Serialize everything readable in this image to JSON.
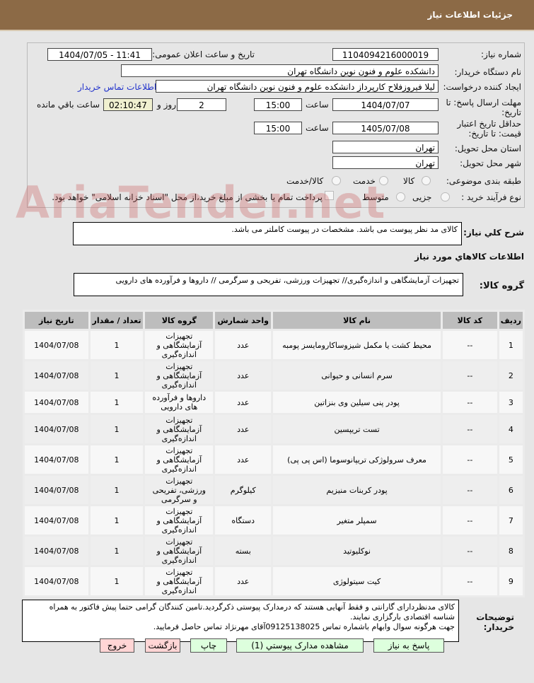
{
  "header": {
    "title": "جزئیات اطلاعات نیاز"
  },
  "form": {
    "need_number_label": "شماره نیاز:",
    "need_number": "1104094216000019",
    "announce_label": "تاریخ و ساعت اعلان عمومی:",
    "announce_value": "1404/07/05 - 11:41",
    "buyer_org_label": "نام دستگاه خریدار:",
    "buyer_org": "دانشکده علوم و فنون نوین دانشگاه تهران",
    "creator_label": "ایجاد کننده درخواست:",
    "creator": "لیلا فیروزفلاح کارپرداز دانشکده علوم و فنون نوین دانشگاه تهران",
    "contact_link": "اطلاعات تماس خریدار",
    "deadline_label": "مهلت ارسال پاسخ: تا تاریخ:",
    "deadline_date": "1404/07/07",
    "time_label": "ساعت",
    "deadline_time": "15:00",
    "days": "2",
    "days_label": "روز و",
    "remaining": "02:10:47",
    "remaining_label": "ساعت باقي مانده",
    "validity_label": "حداقل تاریخ اعتبار قیمت: تا تاریخ:",
    "validity_date": "1405/07/08",
    "validity_time": "15:00",
    "province_label": "استان محل تحویل:",
    "province": "تهران",
    "city_label": "شهر محل تحویل:",
    "city": "تهران",
    "category_label": "طبقه بندی موضوعی:",
    "category_options": [
      "کالا",
      "خدمت",
      "کالا/خدمت"
    ],
    "process_label": "نوع فرآیند خرید :",
    "process_options": [
      "جزیی",
      "متوسط"
    ],
    "payment_note": "پرداخت تمام یا بخشی از مبلغ خرید،از محل \"اسناد خزانه اسلامی\" خواهد بود."
  },
  "watermark": "AriaTender.net",
  "description": {
    "label": "شرح کلي نياز:",
    "text": "کالای مد نظر پیوست می باشد. مشخصات در پیوست کاملتر می باشد."
  },
  "goods_title": "اطلاعات کالاهاي مورد نياز",
  "goods_group": {
    "label": "گروه کالا:",
    "text": "تجهیزات آزمایشگاهی و اندازه‌گیری// تجهیزات ورزشی، تفریحی و سرگرمی // داروها و فرآورده های دارویی"
  },
  "table": {
    "headers": [
      "ردیف",
      "کد کالا",
      "نام کالا",
      "واحد شمارش",
      "گروه کالا",
      "تعداد / مقدار",
      "تاریخ نیاز"
    ],
    "rows": [
      [
        "1",
        "--",
        "محیط کشت یا مکمل شیزوساکارومایسز پومبه",
        "عدد",
        "تجهیزات آزمایشگاهی و اندازه‌گیری",
        "1",
        "1404/07/08"
      ],
      [
        "2",
        "--",
        "سرم انسانی و حیوانی",
        "عدد",
        "تجهیزات آزمایشگاهی و اندازه‌گیری",
        "1",
        "1404/07/08"
      ],
      [
        "3",
        "--",
        "پودر پنی سیلین وی بنزاتین",
        "عدد",
        "داروها و فرآورده های دارویی",
        "1",
        "1404/07/08"
      ],
      [
        "4",
        "--",
        "تست تریپسین",
        "عدد",
        "تجهیزات آزمایشگاهی و اندازه‌گیری",
        "1",
        "1404/07/08"
      ],
      [
        "5",
        "--",
        "معرف سرولوژکی تریپانوسوما (اس پی پی)",
        "عدد",
        "تجهیزات آزمایشگاهی و اندازه‌گیری",
        "1",
        "1404/07/08"
      ],
      [
        "6",
        "--",
        "پودر کربنات منیزیم",
        "کیلوگرم",
        "تجهیزات ورزشی، تفریحی و سرگرمی",
        "1",
        "1404/07/08"
      ],
      [
        "7",
        "--",
        "سمپلر متغیر",
        "دستگاه",
        "تجهیزات آزمایشگاهی و اندازه‌گیری",
        "1",
        "1404/07/08"
      ],
      [
        "8",
        "--",
        "نوکلیوتید",
        "بسته",
        "تجهیزات آزمایشگاهی و اندازه‌گیری",
        "1",
        "1404/07/08"
      ],
      [
        "9",
        "--",
        "کیت سیتولوژی",
        "عدد",
        "تجهیزات آزمایشگاهی و اندازه‌گیری",
        "1",
        "1404/07/08"
      ]
    ]
  },
  "buyer_notes": {
    "label": "توضیحات خریدار:",
    "lines": [
      "کالای مدنظردارای گارانتی و فقط آنهایی هستند که درمدارک پیوستی ذکرگردید.تامین کنندگان گرامی حتما پیش فاکتور به همراه شناسه اقتصادی بارگزاری نمایند.",
      "جهت هرگونه سوال وابهام باشماره تماس 09125138025آقای مهرنژاد تماس حاصل فرمایید."
    ]
  },
  "buttons": {
    "reply": "پاسخ به نیاز",
    "attachments": "مشاهده مدارک پیوستي (1)",
    "print": "چاپ",
    "back": "بازگشت",
    "exit": "خروج"
  }
}
